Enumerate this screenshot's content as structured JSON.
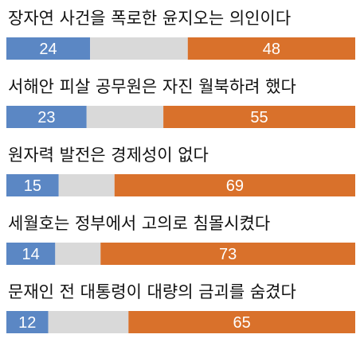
{
  "chart_data": {
    "type": "bar",
    "stacked": true,
    "orientation": "horizontal",
    "categories": [
      "장자연 사건을 폭로한 윤지오는 의인이다",
      "서해안 피살 공무원은 자진 월북하려 했다",
      "원자력 발전은 경제성이 없다",
      "세월호는 정부에서 고의로 침몰시켰다",
      "문재인 전 대통령이 대량의 금괴를 숨겼다"
    ],
    "series": [
      {
        "values": [
          24,
          23,
          15,
          14,
          12
        ],
        "color": "#5b87c4"
      },
      {
        "values": [
          28,
          22,
          16,
          13,
          23
        ],
        "color": "#d9d9d9"
      },
      {
        "values": [
          48,
          55,
          69,
          73,
          65
        ],
        "color": "#d9712b"
      }
    ],
    "xlim": [
      0,
      100
    ],
    "grid": false,
    "legend": "none"
  }
}
